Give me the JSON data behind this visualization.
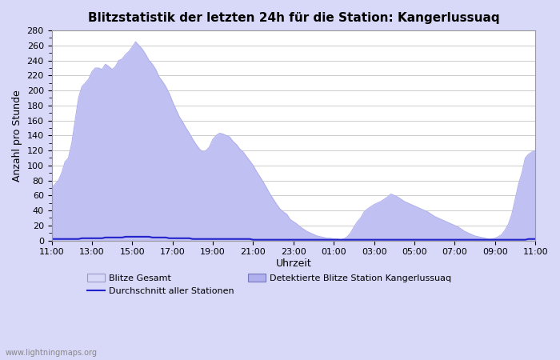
{
  "title": "Blitzstatistik der letzten 24h für die Station: Kangerlussuaq",
  "xlabel": "Uhrzeit",
  "ylabel": "Anzahl pro Stunde",
  "watermark": "www.lightningmaps.org",
  "ylim": [
    0,
    280
  ],
  "yticks": [
    0,
    20,
    40,
    60,
    80,
    100,
    120,
    140,
    160,
    180,
    200,
    220,
    240,
    260,
    280
  ],
  "xtick_labels": [
    "11:00",
    "13:00",
    "15:00",
    "17:00",
    "19:00",
    "21:00",
    "23:00",
    "01:00",
    "03:00",
    "05:00",
    "07:00",
    "09:00",
    "11:00"
  ],
  "xtick_positions": [
    0,
    2,
    4,
    6,
    8,
    10,
    12,
    14,
    16,
    18,
    20,
    22,
    24
  ],
  "legend_blitze_gesamt": "Blitze Gesamt",
  "legend_durchschnitt": "Durchschnitt aller Stationen",
  "legend_station": "Detektierte Blitze Station Kangerlussuaq",
  "color_fill_light": "#d8d8f8",
  "color_fill_dark": "#b0b0ee",
  "color_line_avg": "#2222cc",
  "grid_color": "#cccccc",
  "n_points": 145,
  "blitze_gesamt": [
    70,
    75,
    80,
    90,
    105,
    110,
    130,
    160,
    190,
    205,
    210,
    215,
    225,
    230,
    230,
    228,
    235,
    232,
    228,
    232,
    240,
    242,
    248,
    252,
    258,
    265,
    260,
    255,
    248,
    240,
    235,
    228,
    218,
    212,
    205,
    196,
    185,
    175,
    165,
    158,
    150,
    143,
    135,
    128,
    122,
    118,
    120,
    125,
    135,
    140,
    143,
    142,
    140,
    138,
    132,
    128,
    122,
    118,
    112,
    106,
    100,
    92,
    85,
    78,
    70,
    62,
    55,
    48,
    42,
    38,
    35,
    28,
    25,
    22,
    18,
    15,
    12,
    10,
    8,
    6,
    5,
    4,
    3,
    3,
    2,
    2,
    1,
    2,
    5,
    10,
    18,
    25,
    30,
    38,
    42,
    45,
    48,
    50,
    52,
    55,
    58,
    62,
    60,
    58,
    55,
    52,
    50,
    48,
    46,
    44,
    42,
    40,
    38,
    35,
    32,
    30,
    28,
    26,
    24,
    22,
    20,
    18,
    15,
    12,
    10,
    8,
    6,
    5,
    4,
    3,
    2,
    2,
    3,
    5,
    8,
    14,
    22,
    35,
    55,
    75,
    90,
    110,
    115,
    118,
    120
  ],
  "durchschnitt": [
    2,
    2,
    2,
    2,
    2,
    2,
    2,
    2,
    2,
    3,
    3,
    3,
    3,
    3,
    3,
    3,
    4,
    4,
    4,
    4,
    4,
    4,
    5,
    5,
    5,
    5,
    5,
    5,
    5,
    5,
    4,
    4,
    4,
    4,
    4,
    3,
    3,
    3,
    3,
    3,
    3,
    3,
    2,
    2,
    2,
    2,
    2,
    2,
    2,
    2,
    2,
    2,
    2,
    2,
    2,
    2,
    2,
    2,
    2,
    2,
    1,
    1,
    1,
    1,
    1,
    1,
    1,
    1,
    1,
    1,
    1,
    1,
    1,
    1,
    1,
    1,
    1,
    1,
    1,
    1,
    1,
    1,
    1,
    1,
    1,
    1,
    1,
    1,
    1,
    1,
    1,
    1,
    1,
    1,
    1,
    1,
    1,
    1,
    1,
    1,
    1,
    1,
    1,
    1,
    1,
    1,
    1,
    1,
    1,
    1,
    1,
    1,
    1,
    1,
    1,
    1,
    1,
    1,
    1,
    1,
    1,
    1,
    1,
    1,
    1,
    1,
    1,
    1,
    1,
    1,
    1,
    1,
    1,
    1,
    1,
    1,
    1,
    1,
    1,
    1,
    1,
    1,
    2,
    2,
    2
  ]
}
